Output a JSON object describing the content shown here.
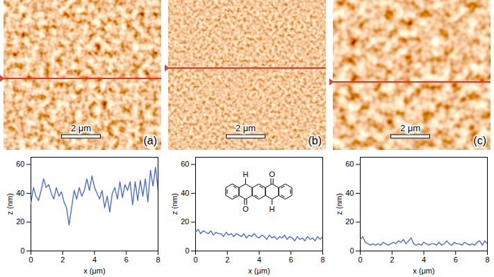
{
  "chart_data": [
    {
      "type": "line",
      "panel_label": "(a)",
      "scale_bar_label": "2 μm",
      "x_label": "x (μm)",
      "y_label": "z (nm)",
      "xlim": [
        0,
        8
      ],
      "xticks": [
        0,
        2,
        4,
        6,
        8
      ],
      "ylim": [
        0,
        65
      ],
      "yticks": [
        0,
        20,
        40,
        60
      ],
      "color": "#4a6ed4",
      "x": [
        0,
        0.16,
        0.32,
        0.48,
        0.64,
        0.8,
        0.96,
        1.12,
        1.28,
        1.44,
        1.6,
        1.76,
        1.92,
        2.08,
        2.24,
        2.4,
        2.56,
        2.72,
        2.88,
        3.04,
        3.2,
        3.36,
        3.52,
        3.68,
        3.84,
        4.0,
        4.16,
        4.32,
        4.48,
        4.64,
        4.8,
        4.96,
        5.12,
        5.28,
        5.44,
        5.6,
        5.76,
        5.92,
        6.08,
        6.24,
        6.4,
        6.56,
        6.72,
        6.88,
        7.04,
        7.2,
        7.36,
        7.52,
        7.68,
        7.84,
        8.0
      ],
      "values": [
        33,
        44,
        38,
        35,
        42,
        50,
        44,
        46,
        40,
        36,
        44,
        38,
        41,
        34,
        30,
        18,
        30,
        42,
        36,
        44,
        38,
        42,
        50,
        42,
        52,
        44,
        40,
        36,
        42,
        30,
        38,
        27,
        40,
        44,
        36,
        48,
        37,
        46,
        42,
        48,
        32,
        48,
        35,
        49,
        38,
        50,
        34,
        56,
        45,
        58,
        42
      ]
    },
    {
      "type": "line",
      "panel_label": "(b)",
      "scale_bar_label": "2 μm",
      "x_label": "x (μm)",
      "y_label": "z (nm)",
      "xlim": [
        0,
        8
      ],
      "xticks": [
        0,
        2,
        4,
        6,
        8
      ],
      "ylim": [
        0,
        65
      ],
      "yticks": [
        0,
        20,
        40,
        60
      ],
      "color": "#4a6ed4",
      "structure_labels": [
        "H",
        "O",
        "O",
        "H"
      ],
      "x": [
        0,
        0.16,
        0.32,
        0.48,
        0.64,
        0.8,
        0.96,
        1.12,
        1.28,
        1.44,
        1.6,
        1.76,
        1.92,
        2.08,
        2.24,
        2.4,
        2.56,
        2.72,
        2.88,
        3.04,
        3.2,
        3.36,
        3.52,
        3.68,
        3.84,
        4.0,
        4.16,
        4.32,
        4.48,
        4.64,
        4.8,
        4.96,
        5.12,
        5.28,
        5.44,
        5.6,
        5.76,
        5.92,
        6.08,
        6.24,
        6.4,
        6.56,
        6.72,
        6.88,
        7.04,
        7.2,
        7.36,
        7.52,
        7.68,
        7.84,
        8.0
      ],
      "values": [
        13,
        15,
        12,
        14,
        13,
        12,
        14,
        11,
        13,
        12,
        12,
        10,
        13,
        11,
        12,
        10,
        12,
        11,
        10,
        12,
        9,
        11,
        10,
        12,
        10,
        9,
        11,
        10,
        8,
        11,
        9,
        10,
        8,
        10,
        9,
        11,
        8,
        10,
        9,
        7,
        10,
        8,
        9,
        7,
        10,
        8,
        9,
        7,
        10,
        8,
        10
      ]
    },
    {
      "type": "line",
      "panel_label": "(c)",
      "scale_bar_label": "2 μm",
      "x_label": "x (μm)",
      "y_label": "z (nm)",
      "xlim": [
        0,
        8
      ],
      "xticks": [
        0,
        2,
        4,
        6,
        8
      ],
      "ylim": [
        0,
        65
      ],
      "yticks": [
        0,
        20,
        40,
        60
      ],
      "color": "#4a6ed4",
      "x": [
        0,
        0.16,
        0.32,
        0.48,
        0.64,
        0.8,
        0.96,
        1.12,
        1.28,
        1.44,
        1.6,
        1.76,
        1.92,
        2.08,
        2.24,
        2.4,
        2.56,
        2.72,
        2.88,
        3.04,
        3.2,
        3.36,
        3.52,
        3.68,
        3.84,
        4.0,
        4.16,
        4.32,
        4.48,
        4.64,
        4.8,
        4.96,
        5.12,
        5.28,
        5.44,
        5.6,
        5.76,
        5.92,
        6.08,
        6.24,
        6.4,
        6.56,
        6.72,
        6.88,
        7.04,
        7.2,
        7.36,
        7.52,
        7.68,
        7.84,
        8.0
      ],
      "values": [
        8,
        10,
        6,
        5,
        4,
        5,
        4,
        5,
        4,
        6,
        5,
        4,
        5,
        6,
        5,
        7,
        6,
        8,
        5,
        7,
        9,
        5,
        4,
        5,
        4,
        6,
        5,
        4,
        5,
        5,
        4,
        6,
        4,
        5,
        7,
        5,
        4,
        6,
        5,
        5,
        4,
        6,
        5,
        4,
        5,
        4,
        6,
        7,
        4,
        7,
        5
      ]
    }
  ]
}
